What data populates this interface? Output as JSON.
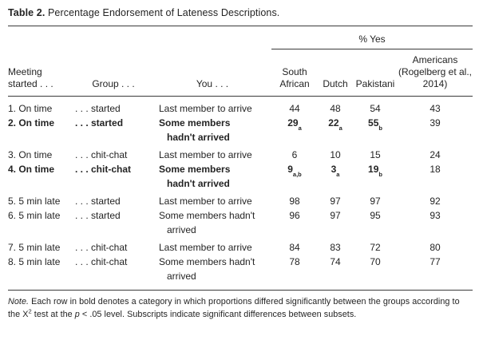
{
  "title": {
    "label": "Table 2.",
    "caption": " Percentage Endorsement of Lateness Descriptions."
  },
  "table": {
    "spanner": "% Yes",
    "columns": [
      "Meeting started . . .",
      "Group . . .",
      "You . . .",
      "South African",
      "Dutch",
      "Pakistani",
      "Americans (Rogelberg et al., 2014)"
    ],
    "rows": [
      {
        "meeting": "1. On time",
        "group": ". . . started",
        "you_lines": [
          "Last member to arrive"
        ],
        "bold": false,
        "values": [
          {
            "v": "44",
            "sub": "",
            "bold": false
          },
          {
            "v": "48",
            "sub": "",
            "bold": false
          },
          {
            "v": "54",
            "sub": "",
            "bold": false
          },
          {
            "v": "43",
            "sub": "",
            "bold": false
          }
        ]
      },
      {
        "meeting": "2. On time",
        "group": ". . . started",
        "you_lines": [
          "Some members",
          "hadn't arrived"
        ],
        "bold": true,
        "values": [
          {
            "v": "29",
            "sub": "a",
            "bold": true
          },
          {
            "v": "22",
            "sub": "a",
            "bold": true
          },
          {
            "v": "55",
            "sub": "b",
            "bold": true
          },
          {
            "v": "39",
            "sub": "",
            "bold": false
          }
        ]
      },
      {
        "meeting": "3. On time",
        "group": ". . . chit-chat",
        "you_lines": [
          "Last member to arrive"
        ],
        "bold": false,
        "values": [
          {
            "v": "6",
            "sub": "",
            "bold": false
          },
          {
            "v": "10",
            "sub": "",
            "bold": false
          },
          {
            "v": "15",
            "sub": "",
            "bold": false
          },
          {
            "v": "24",
            "sub": "",
            "bold": false
          }
        ]
      },
      {
        "meeting": "4. On time",
        "group": ". . . chit-chat",
        "you_lines": [
          "Some members",
          "hadn't arrived"
        ],
        "bold": true,
        "values": [
          {
            "v": "9",
            "sub": "a,b",
            "bold": true
          },
          {
            "v": "3",
            "sub": "a",
            "bold": true
          },
          {
            "v": "19",
            "sub": "b",
            "bold": true
          },
          {
            "v": "18",
            "sub": "",
            "bold": false
          }
        ]
      },
      {
        "meeting": "5. 5 min late",
        "group": ". . . started",
        "you_lines": [
          "Last member to arrive"
        ],
        "bold": false,
        "values": [
          {
            "v": "98",
            "sub": "",
            "bold": false
          },
          {
            "v": "97",
            "sub": "",
            "bold": false
          },
          {
            "v": "97",
            "sub": "",
            "bold": false
          },
          {
            "v": "92",
            "sub": "",
            "bold": false
          }
        ]
      },
      {
        "meeting": "6. 5 min late",
        "group": ". . . started",
        "you_lines": [
          "Some members hadn't",
          "arrived"
        ],
        "bold": false,
        "values": [
          {
            "v": "96",
            "sub": "",
            "bold": false
          },
          {
            "v": "97",
            "sub": "",
            "bold": false
          },
          {
            "v": "95",
            "sub": "",
            "bold": false
          },
          {
            "v": "93",
            "sub": "",
            "bold": false
          }
        ]
      },
      {
        "meeting": "7. 5 min late",
        "group": ". . . chit-chat",
        "you_lines": [
          "Last member to arrive"
        ],
        "bold": false,
        "values": [
          {
            "v": "84",
            "sub": "",
            "bold": false
          },
          {
            "v": "83",
            "sub": "",
            "bold": false
          },
          {
            "v": "72",
            "sub": "",
            "bold": false
          },
          {
            "v": "80",
            "sub": "",
            "bold": false
          }
        ]
      },
      {
        "meeting": "8. 5 min late",
        "group": ". . . chit-chat",
        "you_lines": [
          "Some members hadn't",
          "arrived"
        ],
        "bold": false,
        "values": [
          {
            "v": "78",
            "sub": "",
            "bold": false
          },
          {
            "v": "74",
            "sub": "",
            "bold": false
          },
          {
            "v": "70",
            "sub": "",
            "bold": false
          },
          {
            "v": "77",
            "sub": "",
            "bold": false
          }
        ]
      }
    ]
  },
  "note": {
    "parts": [
      {
        "text": "Note.",
        "style": "italic"
      },
      {
        "text": " Each row in bold denotes a category in which proportions differed significantly between the groups according to the ",
        "style": "normal"
      },
      {
        "text": "Χ",
        "style": "normal"
      },
      {
        "text": "2",
        "style": "sup"
      },
      {
        "text": " test at the ",
        "style": "normal"
      },
      {
        "text": "p",
        "style": "italic"
      },
      {
        "text": " < .05 level. Subscripts indicate significant differences between subsets.",
        "style": "normal"
      }
    ]
  }
}
